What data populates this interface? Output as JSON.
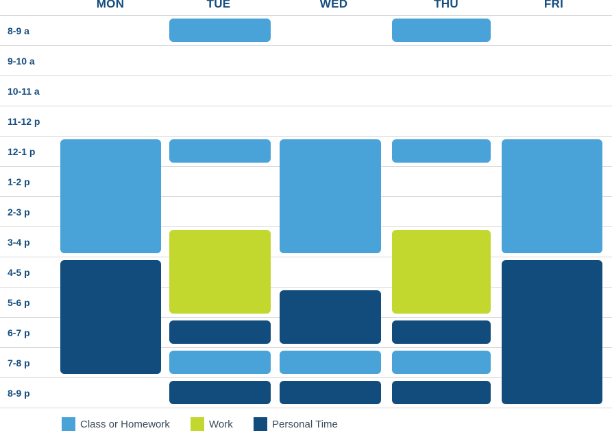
{
  "days": [
    "MON",
    "TUE",
    "WED",
    "THU",
    "FRI"
  ],
  "times": [
    "8-9 a",
    "9-10 a",
    "10-11 a",
    "11-12 p",
    "12-1 p",
    "1-2 p",
    "2-3 p",
    "3-4 p",
    "4-5 p",
    "5-6 p",
    "6-7 p",
    "7-8 p",
    "8-9 p"
  ],
  "categories": {
    "class": {
      "label": "Class or Homework",
      "color": "#4aa3d8"
    },
    "work": {
      "label": "Work",
      "color": "#c2d82f"
    },
    "personal": {
      "label": "Personal Time",
      "color": "#124c7d"
    }
  },
  "events": [
    {
      "day": 1,
      "start": 0,
      "end": 1,
      "cat": "class"
    },
    {
      "day": 3,
      "start": 0,
      "end": 1,
      "cat": "class"
    },
    {
      "day": 0,
      "start": 4,
      "end": 8,
      "cat": "class"
    },
    {
      "day": 0,
      "start": 8,
      "end": 12,
      "cat": "personal"
    },
    {
      "day": 1,
      "start": 4,
      "end": 5,
      "cat": "class"
    },
    {
      "day": 1,
      "start": 7,
      "end": 10,
      "cat": "work"
    },
    {
      "day": 1,
      "start": 10,
      "end": 11,
      "cat": "personal"
    },
    {
      "day": 1,
      "start": 11,
      "end": 12,
      "cat": "class"
    },
    {
      "day": 1,
      "start": 12,
      "end": 13,
      "cat": "personal"
    },
    {
      "day": 2,
      "start": 4,
      "end": 8,
      "cat": "class"
    },
    {
      "day": 2,
      "start": 9,
      "end": 11,
      "cat": "personal"
    },
    {
      "day": 2,
      "start": 11,
      "end": 12,
      "cat": "class"
    },
    {
      "day": 2,
      "start": 12,
      "end": 13,
      "cat": "personal"
    },
    {
      "day": 3,
      "start": 4,
      "end": 5,
      "cat": "class"
    },
    {
      "day": 3,
      "start": 7,
      "end": 10,
      "cat": "work"
    },
    {
      "day": 3,
      "start": 10,
      "end": 11,
      "cat": "personal"
    },
    {
      "day": 3,
      "start": 11,
      "end": 12,
      "cat": "class"
    },
    {
      "day": 3,
      "start": 12,
      "end": 13,
      "cat": "personal"
    },
    {
      "day": 4,
      "start": 4,
      "end": 8,
      "cat": "class"
    },
    {
      "day": 4,
      "start": 8,
      "end": 13,
      "cat": "personal"
    }
  ]
}
